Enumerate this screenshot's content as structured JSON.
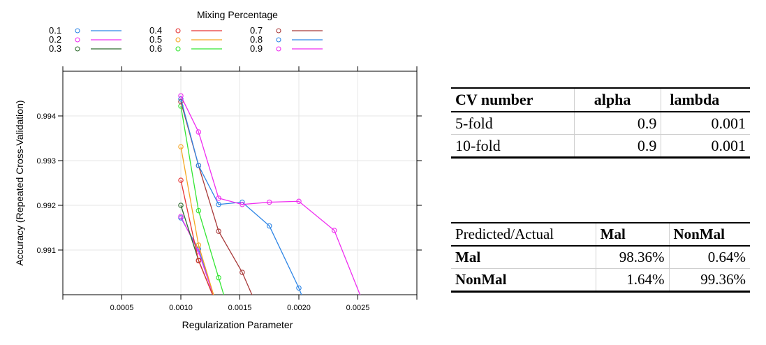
{
  "chart_data": {
    "type": "line",
    "title": "",
    "xlabel": "Regularization Parameter",
    "ylabel": "Accuracy (Repeated Cross-Validation)",
    "legend_title": "Mixing Percentage",
    "legend_placement": "top",
    "xlim": [
      0.0,
      0.003
    ],
    "ylim": [
      0.99,
      0.995
    ],
    "xticks": [
      0.0005,
      0.001,
      0.0015,
      0.002,
      0.0025
    ],
    "xtick_labels": [
      "0.0005",
      "0.0010",
      "0.0015",
      "0.0020",
      "0.0025"
    ],
    "yticks": [
      0.991,
      0.992,
      0.993,
      0.994
    ],
    "ytick_labels": [
      "0.991",
      "0.992",
      "0.993",
      "0.994"
    ],
    "grid": true,
    "series": [
      {
        "name": "0.1",
        "color": "#2f86e6",
        "points": [
          [
            0.001,
            0.99172
          ],
          [
            0.00115,
            0.99102
          ],
          [
            0.0013,
            0.9898
          ]
        ]
      },
      {
        "name": "0.2",
        "color": "#ef2ef0",
        "points": [
          [
            0.001,
            0.99175
          ],
          [
            0.00115,
            0.99096
          ],
          [
            0.0013,
            0.9898
          ]
        ]
      },
      {
        "name": "0.3",
        "color": "#2f6b2f",
        "points": [
          [
            0.001,
            0.992
          ],
          [
            0.00115,
            0.99077
          ],
          [
            0.0013,
            0.9898
          ]
        ]
      },
      {
        "name": "0.4",
        "color": "#e63434",
        "points": [
          [
            0.001,
            0.99256
          ],
          [
            0.00115,
            0.99076
          ],
          [
            0.0013,
            0.9898
          ]
        ]
      },
      {
        "name": "0.5",
        "color": "#f5a623",
        "points": [
          [
            0.001,
            0.99331
          ],
          [
            0.00115,
            0.99111
          ],
          [
            0.0013,
            0.9898
          ]
        ]
      },
      {
        "name": "0.6",
        "color": "#33e633",
        "points": [
          [
            0.001,
            0.99422
          ],
          [
            0.00115,
            0.99188
          ],
          [
            0.00132,
            0.99038
          ],
          [
            0.0015,
            0.9888
          ]
        ]
      },
      {
        "name": "0.7",
        "color": "#a83a3a",
        "points": [
          [
            0.001,
            0.99432
          ],
          [
            0.00115,
            0.99289
          ],
          [
            0.00132,
            0.99142
          ],
          [
            0.00152,
            0.9905
          ],
          [
            0.0018,
            0.9888
          ]
        ]
      },
      {
        "name": "0.8",
        "color": "#2f86e6",
        "points": [
          [
            0.001,
            0.99438
          ],
          [
            0.00115,
            0.99289
          ],
          [
            0.00132,
            0.99202
          ],
          [
            0.00152,
            0.99207
          ],
          [
            0.00175,
            0.99154
          ],
          [
            0.002,
            0.99015
          ],
          [
            0.0022,
            0.9888
          ]
        ]
      },
      {
        "name": "0.9",
        "color": "#ef2ef0",
        "points": [
          [
            0.001,
            0.99445
          ],
          [
            0.00115,
            0.99364
          ],
          [
            0.00132,
            0.99216
          ],
          [
            0.00152,
            0.99202
          ],
          [
            0.00175,
            0.99207
          ],
          [
            0.002,
            0.99209
          ],
          [
            0.0023,
            0.99144
          ],
          [
            0.0027,
            0.9888
          ]
        ]
      }
    ]
  },
  "cv_table": {
    "headers": [
      "CV number",
      "alpha",
      "lambda"
    ],
    "rows": [
      [
        "5-fold",
        "0.9",
        "0.001"
      ],
      [
        "10-fold",
        "0.9",
        "0.001"
      ]
    ]
  },
  "confusion_table": {
    "headers": [
      "Predicted/Actual",
      "Mal",
      "NonMal"
    ],
    "rows": [
      [
        "Mal",
        "98.36%",
        "0.64%"
      ],
      [
        "NonMal",
        "1.64%",
        "99.36%"
      ]
    ]
  }
}
